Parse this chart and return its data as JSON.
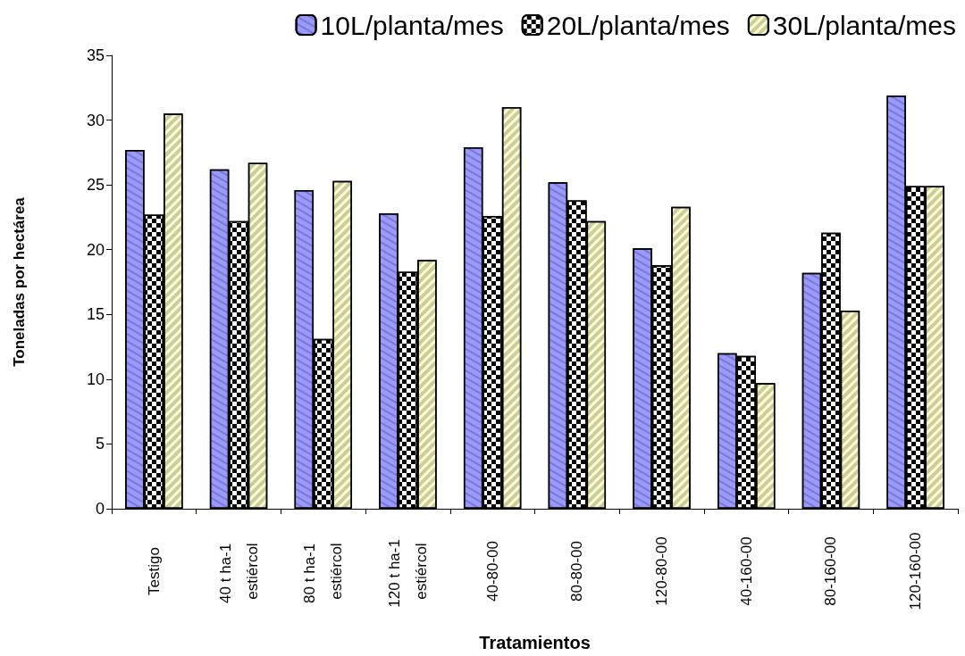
{
  "chart_data": {
    "type": "bar",
    "xlabel": "Tratamientos",
    "ylabel": "Toneladas por hectárea",
    "categories": [
      "Testigo",
      "40 t ha-1 estiércol",
      "80 t ha-1 estiércol",
      "120 t ha-1 estiércol",
      "40-80-00",
      "80-80-00",
      "120-80-00",
      "40-160-00",
      "80-160-00",
      "120-160-00"
    ],
    "series": [
      {
        "name": "10L/planta/mes",
        "color": "#9999ff",
        "values": [
          27.7,
          26.2,
          24.6,
          22.8,
          27.9,
          25.2,
          20.1,
          12.0,
          18.2,
          31.9
        ]
      },
      {
        "name": "20L/planta/mes",
        "color": "#000000",
        "values": [
          22.7,
          22.2,
          13.1,
          18.3,
          22.6,
          23.8,
          18.8,
          11.8,
          21.3,
          24.9
        ]
      },
      {
        "name": "30L/planta/mes",
        "color": "#ffffcc",
        "values": [
          30.5,
          26.7,
          25.3,
          19.2,
          31.0,
          22.2,
          23.3,
          9.7,
          15.3,
          24.9
        ]
      }
    ],
    "ylim": [
      0,
      35
    ],
    "yticks": [
      0,
      5,
      10,
      15,
      20,
      25,
      30,
      35
    ],
    "grid": false,
    "legend": "top right"
  }
}
